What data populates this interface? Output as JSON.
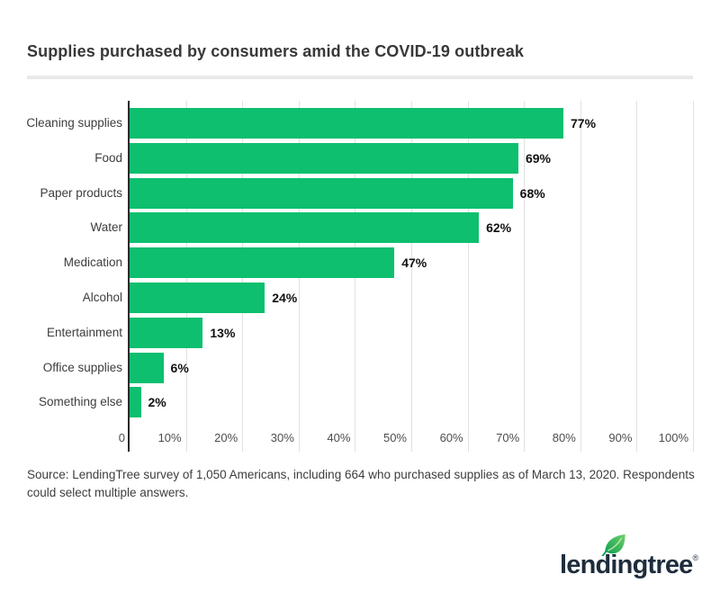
{
  "header": {
    "title": "Supplies purchased by consumers amid the COVID-19 outbreak"
  },
  "chart_data": {
    "type": "bar",
    "orientation": "horizontal",
    "title": "Supplies purchased by consumers amid the COVID-19 outbreak",
    "categories": [
      "Cleaning supplies",
      "Food",
      "Paper products",
      "Water",
      "Medication",
      "Alcohol",
      "Entertainment",
      "Office supplies",
      "Something else"
    ],
    "values": [
      77,
      69,
      68,
      62,
      47,
      24,
      13,
      6,
      2
    ],
    "value_labels": [
      "77%",
      "69%",
      "68%",
      "62%",
      "47%",
      "24%",
      "13%",
      "6%",
      "2%"
    ],
    "x_ticks": [
      "0",
      "10%",
      "20%",
      "30%",
      "40%",
      "50%",
      "60%",
      "70%",
      "80%",
      "90%",
      "100%"
    ],
    "xlim": [
      0,
      100
    ],
    "xlabel": "",
    "ylabel": "",
    "grid": true,
    "legend": false,
    "bar_color": "#0dbf6f",
    "gridline_color": "#e1e1e1",
    "axis_line_color": "#2a2a2a",
    "value_label_color": "#111111",
    "category_label_color": "#3d3d3d",
    "tick_label_color": "#4d4d4d"
  },
  "source": {
    "text": "Source: LendingTree survey of 1,050 Americans, including 664 who purchased supplies as of March 13, 2020. Respondents could select multiple answers."
  },
  "logo": {
    "text": "lendingtree",
    "registered": "®",
    "text_color": "#1e2d3d",
    "leaf_color_dark": "#0f9f55",
    "leaf_color_light": "#6ed06a"
  },
  "colors": {
    "background": "#ffffff",
    "title": "#383838",
    "divider": "#e9e9e9",
    "source_text": "#3d3d3d"
  }
}
